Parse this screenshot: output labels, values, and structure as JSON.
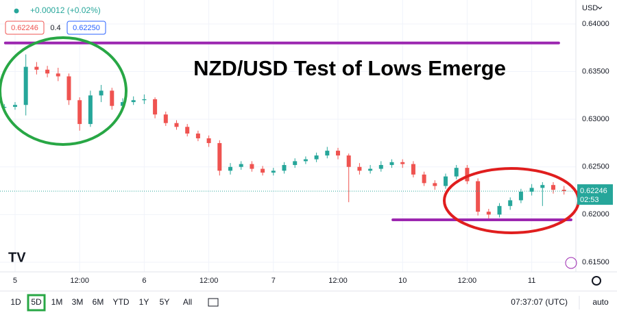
{
  "chart_data": {
    "type": "candlestick",
    "title": "NZD/USD Test of Lows Emerge",
    "currency": "USD",
    "x": [
      -2,
      0,
      2,
      4,
      6,
      8,
      10,
      12,
      14,
      16,
      18,
      20,
      22,
      24,
      26,
      28,
      30,
      32,
      34,
      36,
      38,
      40,
      42,
      44,
      46,
      48,
      50,
      52,
      54,
      56,
      58,
      60,
      62,
      64,
      66,
      68,
      70,
      72,
      74,
      76,
      78,
      80,
      82,
      84,
      86,
      88,
      90,
      92,
      94,
      96,
      98,
      100,
      102
    ],
    "open": [
      0.6312,
      0.6313,
      0.6315,
      0.6355,
      0.6352,
      0.6348,
      0.6345,
      0.632,
      0.6295,
      0.6325,
      0.633,
      0.6314,
      0.6318,
      0.632,
      0.6321,
      0.6305,
      0.6296,
      0.6292,
      0.6285,
      0.628,
      0.6275,
      0.6246,
      0.625,
      0.6253,
      0.6248,
      0.6244,
      0.6246,
      0.6252,
      0.6256,
      0.6258,
      0.6262,
      0.6267,
      0.6262,
      0.625,
      0.6246,
      0.6248,
      0.6252,
      0.6255,
      0.6253,
      0.6242,
      0.6233,
      0.623,
      0.624,
      0.6249,
      0.6235,
      0.6203,
      0.62,
      0.6209,
      0.6215,
      0.6224,
      0.6228,
      0.6231,
      0.6226
    ],
    "high": [
      0.6316,
      0.6318,
      0.6368,
      0.636,
      0.6356,
      0.6354,
      0.6348,
      0.6323,
      0.633,
      0.6336,
      0.6333,
      0.6322,
      0.6324,
      0.6326,
      0.6323,
      0.6308,
      0.6299,
      0.6295,
      0.6288,
      0.6283,
      0.6278,
      0.6254,
      0.6256,
      0.6256,
      0.6251,
      0.6249,
      0.6255,
      0.6259,
      0.6261,
      0.6265,
      0.6271,
      0.627,
      0.6264,
      0.6254,
      0.6252,
      0.6256,
      0.6258,
      0.6258,
      0.6256,
      0.6245,
      0.6236,
      0.6243,
      0.6252,
      0.6252,
      0.6238,
      0.6206,
      0.6212,
      0.6218,
      0.6227,
      0.6232,
      0.6234,
      0.6234,
      0.623
    ],
    "low": [
      0.6309,
      0.631,
      0.6304,
      0.6347,
      0.6344,
      0.634,
      0.6315,
      0.6288,
      0.6292,
      0.6318,
      0.631,
      0.6311,
      0.6315,
      0.6316,
      0.6301,
      0.6293,
      0.6289,
      0.6282,
      0.6277,
      0.6271,
      0.6241,
      0.6242,
      0.6247,
      0.6245,
      0.6241,
      0.6241,
      0.6243,
      0.6249,
      0.6253,
      0.6255,
      0.6259,
      0.6258,
      0.6213,
      0.6242,
      0.6243,
      0.6245,
      0.6249,
      0.6249,
      0.6239,
      0.623,
      0.6226,
      0.6227,
      0.6237,
      0.6232,
      0.6199,
      0.6196,
      0.6197,
      0.6205,
      0.6212,
      0.622,
      0.6209,
      0.6222,
      0.6221
    ],
    "close": [
      0.6313,
      0.6315,
      0.6355,
      0.6352,
      0.6348,
      0.6345,
      0.632,
      0.6295,
      0.6325,
      0.633,
      0.6314,
      0.6318,
      0.632,
      0.6321,
      0.6305,
      0.6296,
      0.6292,
      0.6285,
      0.628,
      0.6275,
      0.6246,
      0.625,
      0.6253,
      0.6248,
      0.6244,
      0.6246,
      0.6252,
      0.6256,
      0.6258,
      0.6262,
      0.6267,
      0.6262,
      0.625,
      0.6246,
      0.6248,
      0.6252,
      0.6255,
      0.6253,
      0.6242,
      0.6233,
      0.623,
      0.624,
      0.6249,
      0.6235,
      0.6203,
      0.62,
      0.6209,
      0.6215,
      0.6224,
      0.6228,
      0.6231,
      0.6226,
      0.62246
    ],
    "up_color": "#26a69a",
    "down_color": "#ef5350",
    "xlim": [
      -2.8,
      104.2
    ],
    "ylim": [
      0.61399,
      0.64251
    ],
    "xticks": [
      {
        "value": 0,
        "label": "5"
      },
      {
        "value": 12,
        "label": "12:00"
      },
      {
        "value": 24,
        "label": "6"
      },
      {
        "value": 36,
        "label": "12:00"
      },
      {
        "value": 48,
        "label": "7"
      },
      {
        "value": 60,
        "label": "12:00"
      },
      {
        "value": 72,
        "label": "10"
      },
      {
        "value": 84,
        "label": "12:00"
      },
      {
        "value": 96,
        "label": "11"
      }
    ],
    "yticks": [
      {
        "value": 0.615,
        "label": "0.61500"
      },
      {
        "value": 0.62,
        "label": "0.62000"
      },
      {
        "value": 0.625,
        "label": "0.62500"
      },
      {
        "value": 0.63,
        "label": "0.63000"
      },
      {
        "value": 0.635,
        "label": "0.63500"
      },
      {
        "value": 0.64,
        "label": "0.64000"
      }
    ],
    "grid": true,
    "last_price": {
      "value": 0.62246,
      "label": "0.62246",
      "countdown": "02:53",
      "color": "#26a69a"
    },
    "levels": [
      {
        "value": 0.638,
        "from": -1.8,
        "to": 101,
        "color": "#9c27b0"
      },
      {
        "value": 0.61945,
        "from": 70.2,
        "to": 103.3,
        "color": "#9c27b0"
      }
    ]
  },
  "header": {
    "change": "+0.00012 (+0.02%)",
    "bid": "0.62246",
    "spread": "0.4",
    "ask": "0.62250"
  },
  "toolbar": {
    "ranges": [
      "1D",
      "5D",
      "1M",
      "3M",
      "6M",
      "YTD",
      "1Y",
      "5Y",
      "All"
    ],
    "active": "5D",
    "clock": "07:37:07 (UTC)",
    "scale": "auto"
  }
}
